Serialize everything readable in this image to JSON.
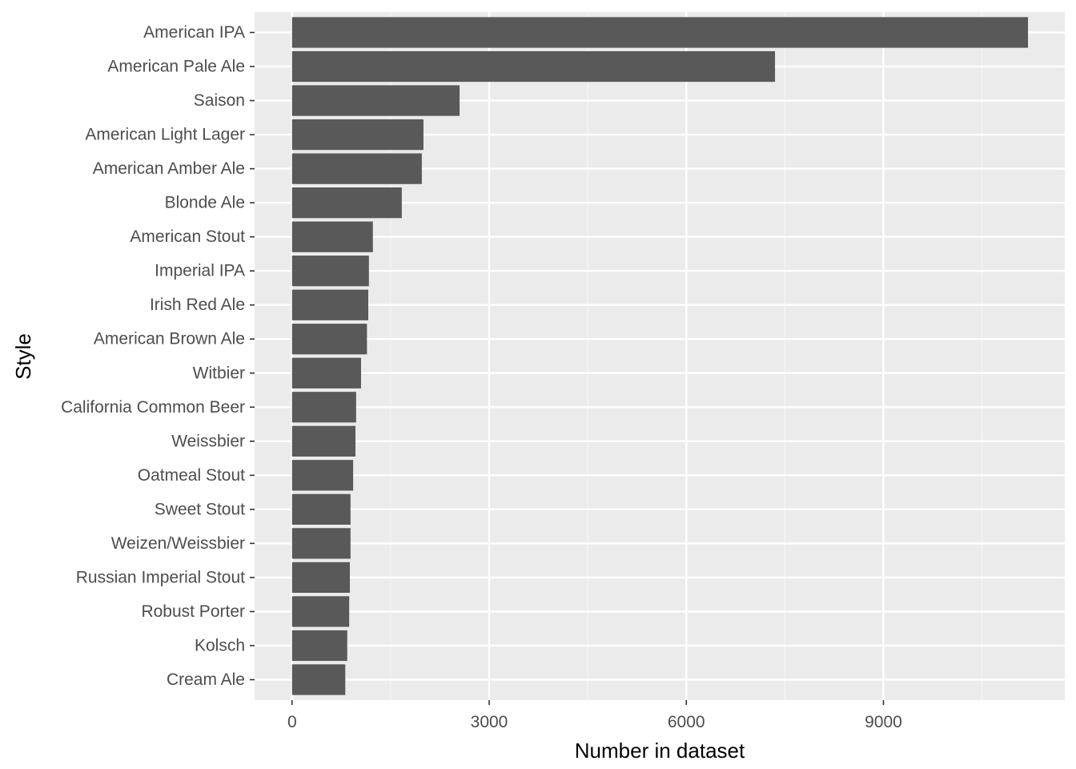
{
  "chart_data": {
    "type": "bar",
    "orientation": "horizontal",
    "categories": [
      "American IPA",
      "American Pale Ale",
      "Saison",
      "American Light Lager",
      "American Amber Ale",
      "Blonde Ale",
      "American Stout",
      "Imperial IPA",
      "Irish Red Ale",
      "American Brown Ale",
      "Witbier",
      "California Common Beer",
      "Weissbier",
      "Oatmeal Stout",
      "Sweet Stout",
      "Weizen/Weissbier",
      "Russian Imperial Stout",
      "Robust Porter",
      "Kolsch",
      "Cream Ale"
    ],
    "values": [
      11200,
      7350,
      2550,
      2000,
      1975,
      1670,
      1230,
      1170,
      1160,
      1140,
      1050,
      975,
      965,
      930,
      890,
      890,
      880,
      870,
      840,
      810
    ],
    "xlabel": "Number in dataset",
    "ylabel": "Style",
    "xlim": [
      -570,
      11760
    ],
    "xticks": [
      0,
      3000,
      6000,
      9000
    ],
    "xtick_labels": [
      "0",
      "3000",
      "6000",
      "9000"
    ],
    "grid": true,
    "legend": "none",
    "colors": {
      "bar": "#595959",
      "panel": "#ebebeb",
      "grid_major": "#ffffff",
      "grid_minor": "#f5f5f5",
      "tick_text": "#4d4d4d",
      "tick_mark": "#333333"
    }
  }
}
